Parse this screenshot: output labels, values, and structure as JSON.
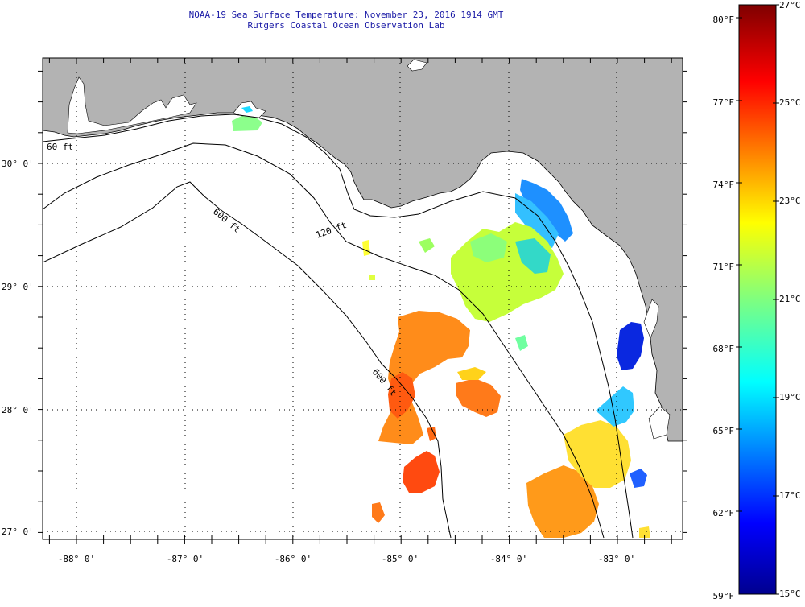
{
  "header": {
    "title_line1": "NOAA-19 Sea Surface Temperature:  November 23, 2016 1914 GMT",
    "title_line2": "Rutgers Coastal Ocean Observation Lab"
  },
  "map": {
    "lat_labels": [
      "30° 0'",
      "29° 0'",
      "28° 0'",
      "27° 0'"
    ],
    "lon_labels": [
      "-88° 0'",
      "-87° 0'",
      "-86° 0'",
      "-85° 0'",
      "-84° 0'",
      "-83° 0'"
    ],
    "contour_labels": [
      "60 ft",
      "120 ft",
      "600 ft",
      "600 ft"
    ],
    "colors": {
      "land": "#b3b3b3",
      "ocean": "#ffffff"
    }
  },
  "colorbar": {
    "f_labels": [
      "80°F",
      "77°F",
      "74°F",
      "71°F",
      "68°F",
      "65°F",
      "62°F",
      "59°F"
    ],
    "c_labels": [
      "27°C",
      "25°C",
      "23°C",
      "21°C",
      "19°C",
      "17°C",
      "15°C"
    ],
    "min_c": 15,
    "max_c": 27
  }
}
